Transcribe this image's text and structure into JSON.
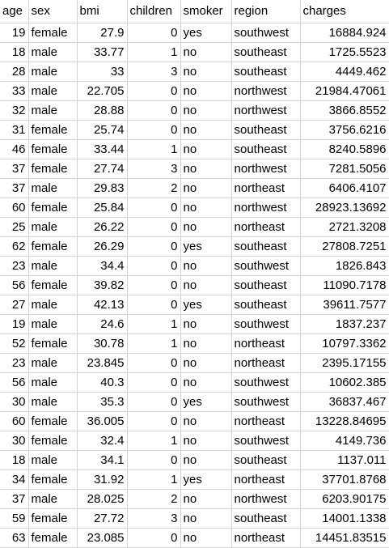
{
  "columns": [
    "age",
    "sex",
    "bmi",
    "children",
    "smoker",
    "region",
    "charges"
  ],
  "rows": [
    [
      "19",
      "female",
      "27.9",
      "0",
      "yes",
      "southwest",
      "16884.924"
    ],
    [
      "18",
      "male",
      "33.77",
      "1",
      "no",
      "southeast",
      "1725.5523"
    ],
    [
      "28",
      "male",
      "33",
      "3",
      "no",
      "southeast",
      "4449.462"
    ],
    [
      "33",
      "male",
      "22.705",
      "0",
      "no",
      "northwest",
      "21984.47061"
    ],
    [
      "32",
      "male",
      "28.88",
      "0",
      "no",
      "northwest",
      "3866.8552"
    ],
    [
      "31",
      "female",
      "25.74",
      "0",
      "no",
      "southeast",
      "3756.6216"
    ],
    [
      "46",
      "female",
      "33.44",
      "1",
      "no",
      "southeast",
      "8240.5896"
    ],
    [
      "37",
      "female",
      "27.74",
      "3",
      "no",
      "northwest",
      "7281.5056"
    ],
    [
      "37",
      "male",
      "29.83",
      "2",
      "no",
      "northeast",
      "6406.4107"
    ],
    [
      "60",
      "female",
      "25.84",
      "0",
      "no",
      "northwest",
      "28923.13692"
    ],
    [
      "25",
      "male",
      "26.22",
      "0",
      "no",
      "northeast",
      "2721.3208"
    ],
    [
      "62",
      "female",
      "26.29",
      "0",
      "yes",
      "southeast",
      "27808.7251"
    ],
    [
      "23",
      "male",
      "34.4",
      "0",
      "no",
      "southwest",
      "1826.843"
    ],
    [
      "56",
      "female",
      "39.82",
      "0",
      "no",
      "southeast",
      "11090.7178"
    ],
    [
      "27",
      "male",
      "42.13",
      "0",
      "yes",
      "southeast",
      "39611.7577"
    ],
    [
      "19",
      "male",
      "24.6",
      "1",
      "no",
      "southwest",
      "1837.237"
    ],
    [
      "52",
      "female",
      "30.78",
      "1",
      "no",
      "northeast",
      "10797.3362"
    ],
    [
      "23",
      "male",
      "23.845",
      "0",
      "no",
      "northeast",
      "2395.17155"
    ],
    [
      "56",
      "male",
      "40.3",
      "0",
      "no",
      "southwest",
      "10602.385"
    ],
    [
      "30",
      "male",
      "35.3",
      "0",
      "yes",
      "southwest",
      "36837.467"
    ],
    [
      "60",
      "female",
      "36.005",
      "0",
      "no",
      "northeast",
      "13228.84695"
    ],
    [
      "30",
      "female",
      "32.4",
      "1",
      "no",
      "southwest",
      "4149.736"
    ],
    [
      "18",
      "male",
      "34.1",
      "0",
      "no",
      "southeast",
      "1137.011"
    ],
    [
      "34",
      "female",
      "31.92",
      "1",
      "yes",
      "northeast",
      "37701.8768"
    ],
    [
      "37",
      "male",
      "28.025",
      "2",
      "no",
      "northwest",
      "6203.90175"
    ],
    [
      "59",
      "female",
      "27.72",
      "3",
      "no",
      "southeast",
      "14001.1338"
    ],
    [
      "63",
      "female",
      "23.085",
      "0",
      "no",
      "northeast",
      "14451.83515"
    ]
  ]
}
